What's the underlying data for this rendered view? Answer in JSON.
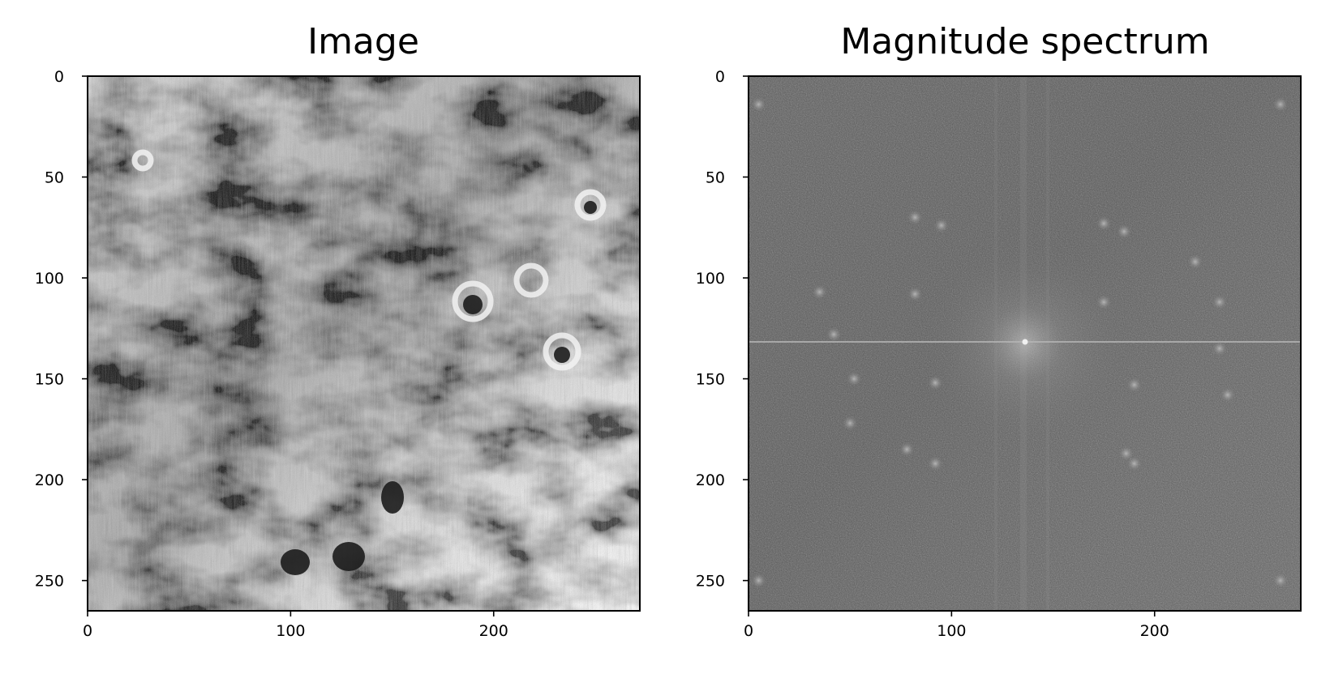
{
  "chart_data": [
    {
      "type": "heatmap",
      "title": "Image",
      "colormap": "gray",
      "image_shape": [
        265,
        272
      ],
      "xlim": [
        0,
        272
      ],
      "ylim": [
        265,
        0
      ],
      "xticks": [
        0,
        100,
        200
      ],
      "yticks": [
        0,
        50,
        100,
        150,
        200,
        250
      ],
      "xlabel": "",
      "ylabel": "",
      "grid": false,
      "content": "grayscale photograph of a cratered lunar surface"
    },
    {
      "type": "heatmap",
      "title": "Magnitude spectrum",
      "colormap": "gray",
      "image_shape": [
        265,
        272
      ],
      "xlim": [
        0,
        272
      ],
      "ylim": [
        265,
        0
      ],
      "xticks": [
        0,
        100,
        200
      ],
      "yticks": [
        0,
        50,
        100,
        150,
        200,
        250
      ],
      "xlabel": "",
      "ylabel": "",
      "grid": false,
      "content": "centered log-magnitude FFT spectrum with bright DC peak near (136, 132) and periodic noise spikes",
      "peak_center": [
        136,
        132
      ],
      "noise_spikes": [
        [
          35,
          107
        ],
        [
          42,
          128
        ],
        [
          52,
          150
        ],
        [
          50,
          172
        ],
        [
          82,
          108
        ],
        [
          92,
          152
        ],
        [
          78,
          185
        ],
        [
          92,
          192
        ],
        [
          82,
          70
        ],
        [
          95,
          74
        ],
        [
          175,
          73
        ],
        [
          185,
          77
        ],
        [
          220,
          92
        ],
        [
          232,
          112
        ],
        [
          175,
          112
        ],
        [
          232,
          135
        ],
        [
          236,
          158
        ],
        [
          190,
          153
        ],
        [
          190,
          192
        ],
        [
          186,
          187
        ],
        [
          5,
          14
        ],
        [
          262,
          14
        ],
        [
          5,
          250
        ],
        [
          262,
          250
        ]
      ]
    }
  ]
}
